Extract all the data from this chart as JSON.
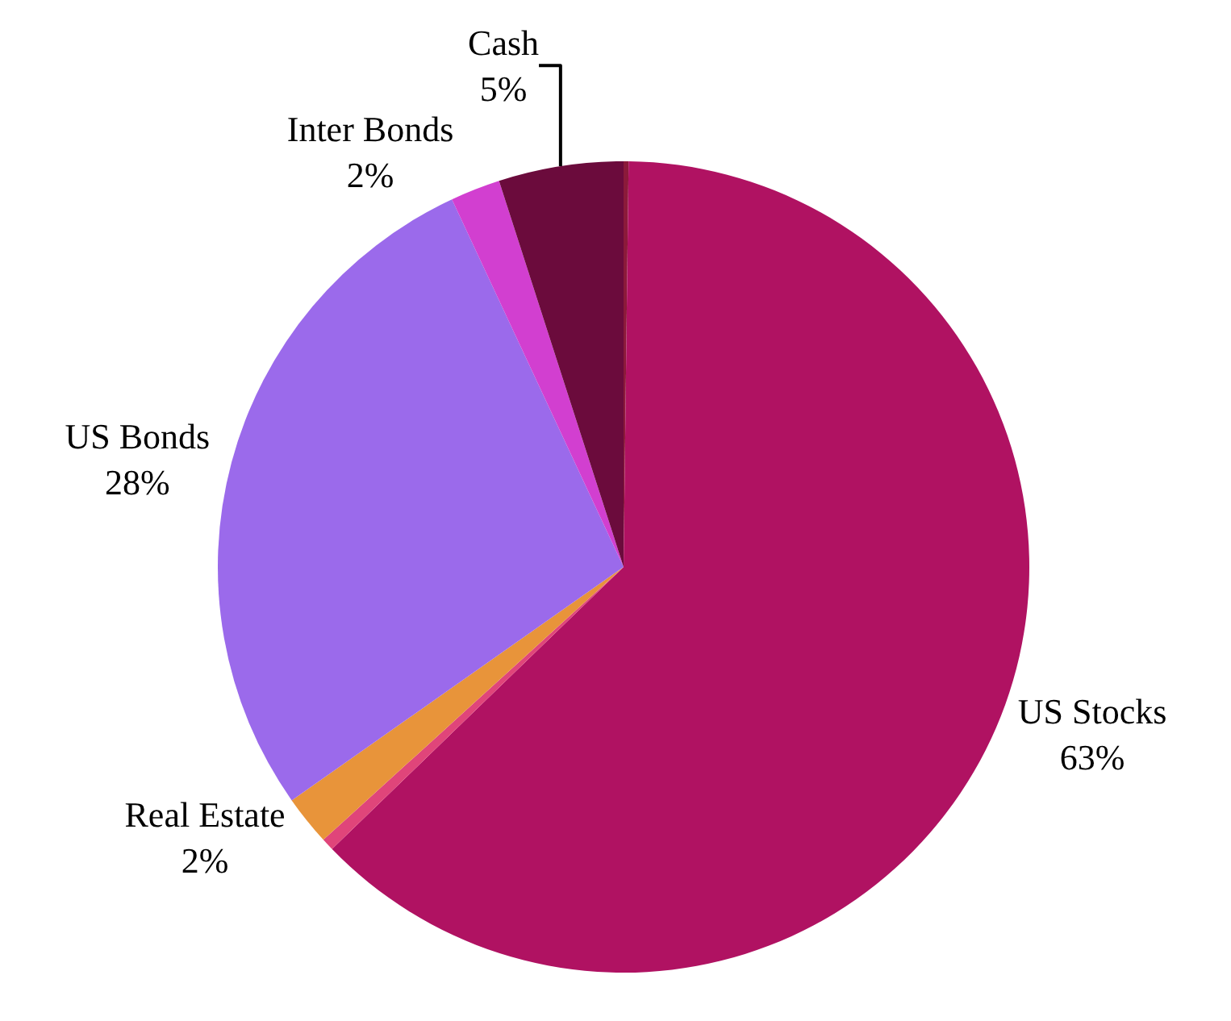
{
  "chart_data": {
    "type": "pie",
    "categories": [
      null,
      "US Stocks",
      null,
      "Real Estate",
      "US Bonds",
      "Inter Bonds",
      "Cash"
    ],
    "values": [
      0.2,
      63,
      0.5,
      2,
      28,
      2,
      5
    ],
    "value_labels": [
      null,
      "63%",
      null,
      "2%",
      "28%",
      "2%",
      "5%"
    ],
    "colors": [
      "#8b1a3a",
      "#b01262",
      "#e0457a",
      "#e8943a",
      "#9b6aeb",
      "#d23fd0",
      "#6b0b3c"
    ],
    "legend": false
  }
}
